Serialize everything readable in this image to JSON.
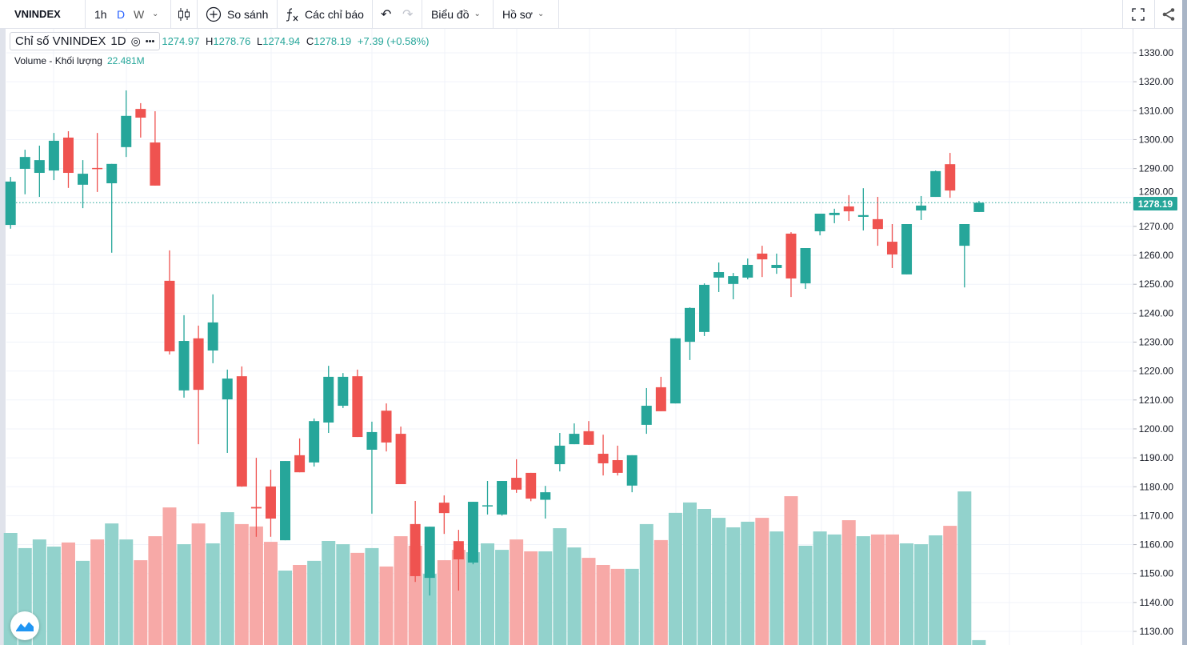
{
  "toolbar": {
    "symbol": "VNINDEX",
    "intervals": [
      "1h",
      "D",
      "W"
    ],
    "active_interval": "D",
    "compare_label": "So sánh",
    "indicators_label": "Các chỉ báo",
    "chart_label": "Biểu đồ",
    "profile_label": "Hồ sơ"
  },
  "legend": {
    "title": "Chỉ số VNINDEX",
    "interval": "1D",
    "open": "1274.97",
    "high_key": "H",
    "high": "1278.76",
    "low_key": "L",
    "low": "1274.94",
    "close_key": "C",
    "close": "1278.19",
    "change": "+7.39 (+0.58%)",
    "volume_label": "Volume - Khối lượng",
    "volume_value": "22.481M"
  },
  "price_badge": "1278.19",
  "colors": {
    "up": "#26a69a",
    "down": "#ef5350",
    "up_vol": "#92d2cc",
    "down_vol": "#f7a9a7"
  },
  "chart_data": {
    "type": "candlestick",
    "title": "Chỉ số VNINDEX 1D",
    "ylim": [
      1127,
      1338
    ],
    "yticks": [
      1130,
      1140,
      1150,
      1160,
      1170,
      1180,
      1190,
      1200,
      1210,
      1220,
      1230,
      1240,
      1250,
      1260,
      1270,
      1280,
      1290,
      1300,
      1310,
      1320,
      1330
    ],
    "last_price": 1278.19,
    "ohlc": [
      [
        1270.5,
        1287.1,
        1269.2,
        1285.5
      ],
      [
        1289.9,
        1296.5,
        1281.1,
        1294.0
      ],
      [
        1288.5,
        1297.9,
        1280.2,
        1292.9
      ],
      [
        1289.3,
        1302.3,
        1286.0,
        1299.6
      ],
      [
        1300.7,
        1302.9,
        1283.3,
        1288.5
      ],
      [
        1284.4,
        1292.9,
        1276.3,
        1288.2
      ],
      [
        1290.2,
        1302.3,
        1281.9,
        1290.0
      ],
      [
        1284.9,
        1291.6,
        1260.9,
        1291.6
      ],
      [
        1297.4,
        1317.0,
        1294.0,
        1308.2
      ],
      [
        1310.6,
        1312.6,
        1300.7,
        1307.6
      ],
      [
        1299.0,
        1309.8,
        1284.1,
        1284.1
      ],
      [
        1251.2,
        1261.7,
        1225.7,
        1226.8
      ],
      [
        1213.3,
        1239.3,
        1210.8,
        1230.4
      ],
      [
        1231.3,
        1235.7,
        1194.7,
        1213.5
      ],
      [
        1227.1,
        1246.5,
        1222.7,
        1236.8
      ],
      [
        1210.2,
        1220.5,
        1191.7,
        1217.4
      ],
      [
        1218.2,
        1221.6,
        1180.0,
        1180.1
      ],
      [
        1173.0,
        1190.0,
        1162.7,
        1172.5
      ],
      [
        1180.1,
        1185.9,
        1162.7,
        1169.0
      ],
      [
        1161.5,
        1188.9,
        1161.5,
        1188.9
      ],
      [
        1190.9,
        1196.7,
        1185.0,
        1185.0
      ],
      [
        1188.4,
        1203.6,
        1187.0,
        1202.7
      ],
      [
        1202.2,
        1221.8,
        1198.6,
        1218.0
      ],
      [
        1208.0,
        1219.3,
        1207.2,
        1218.0
      ],
      [
        1218.2,
        1220.5,
        1197.2,
        1197.2
      ],
      [
        1192.8,
        1202.5,
        1170.7,
        1198.9
      ],
      [
        1206.3,
        1208.8,
        1192.2,
        1195.3
      ],
      [
        1198.3,
        1200.8,
        1180.9,
        1180.9
      ],
      [
        1167.1,
        1175.1,
        1147.1,
        1149.1
      ],
      [
        1148.5,
        1166.2,
        1142.4,
        1166.2
      ],
      [
        1174.5,
        1177.0,
        1163.7,
        1170.9
      ],
      [
        1161.2,
        1165.1,
        1144.1,
        1154.9
      ],
      [
        1153.8,
        1174.8,
        1153.2,
        1174.8
      ],
      [
        1173.2,
        1182.0,
        1170.4,
        1173.6
      ],
      [
        1170.4,
        1182.0,
        1170.0,
        1182.0
      ],
      [
        1183.1,
        1189.5,
        1177.9,
        1179.0
      ],
      [
        1184.8,
        1184.8,
        1175.0,
        1175.9
      ],
      [
        1175.5,
        1180.3,
        1169.0,
        1178.1
      ],
      [
        1187.8,
        1198.6,
        1185.3,
        1194.2
      ],
      [
        1194.7,
        1201.9,
        1194.7,
        1198.3
      ],
      [
        1199.2,
        1202.7,
        1194.5,
        1194.5
      ],
      [
        1191.4,
        1198.0,
        1183.9,
        1188.1
      ],
      [
        1189.2,
        1194.2,
        1183.9,
        1184.8
      ],
      [
        1180.4,
        1190.9,
        1178.1,
        1190.9
      ],
      [
        1201.4,
        1214.1,
        1198.3,
        1208.0
      ],
      [
        1214.4,
        1218.0,
        1206.1,
        1206.1
      ],
      [
        1208.8,
        1231.3,
        1208.8,
        1231.3
      ],
      [
        1230.1,
        1242.0,
        1223.8,
        1241.8
      ],
      [
        1233.5,
        1250.3,
        1232.1,
        1249.8
      ],
      [
        1252.3,
        1257.5,
        1247.3,
        1254.2
      ],
      [
        1250.1,
        1253.9,
        1244.8,
        1252.8
      ],
      [
        1252.3,
        1258.9,
        1251.7,
        1256.7
      ],
      [
        1260.6,
        1263.3,
        1252.5,
        1258.6
      ],
      [
        1255.6,
        1260.6,
        1253.6,
        1256.7
      ],
      [
        1267.5,
        1268.0,
        1245.6,
        1252.0
      ],
      [
        1250.3,
        1262.5,
        1248.4,
        1262.5
      ],
      [
        1268.3,
        1274.4,
        1266.9,
        1274.4
      ],
      [
        1273.9,
        1276.1,
        1271.1,
        1274.7
      ],
      [
        1276.9,
        1280.8,
        1271.9,
        1275.2
      ],
      [
        1273.3,
        1283.2,
        1268.6,
        1273.9
      ],
      [
        1272.5,
        1280.2,
        1263.3,
        1269.1
      ],
      [
        1264.7,
        1270.8,
        1255.6,
        1260.3
      ],
      [
        1253.4,
        1270.8,
        1253.4,
        1270.8
      ],
      [
        1275.5,
        1280.5,
        1272.2,
        1277.2
      ],
      [
        1280.2,
        1289.3,
        1280.2,
        1289.1
      ],
      [
        1291.5,
        1295.4,
        1279.9,
        1282.4
      ],
      [
        1263.3,
        1270.8,
        1248.9,
        1270.8
      ],
      [
        1274.97,
        1278.76,
        1274.94,
        1278.19
      ]
    ],
    "volume_millions": [
      518,
      448,
      488,
      455,
      474,
      389,
      488,
      562,
      488,
      392,
      503,
      636,
      466,
      562,
      470,
      614,
      559,
      548,
      477,
      344,
      370,
      389,
      481,
      466,
      426,
      448,
      363,
      503,
      459,
      329,
      392,
      440,
      429,
      470,
      440,
      488,
      433,
      433,
      540,
      451,
      403,
      370,
      352,
      352,
      559,
      485,
      611,
      659,
      629,
      588,
      544,
      570,
      588,
      525,
      688,
      459,
      525,
      511,
      577,
      503,
      511,
      511,
      470,
      466,
      507,
      551,
      710,
      22.481
    ]
  }
}
